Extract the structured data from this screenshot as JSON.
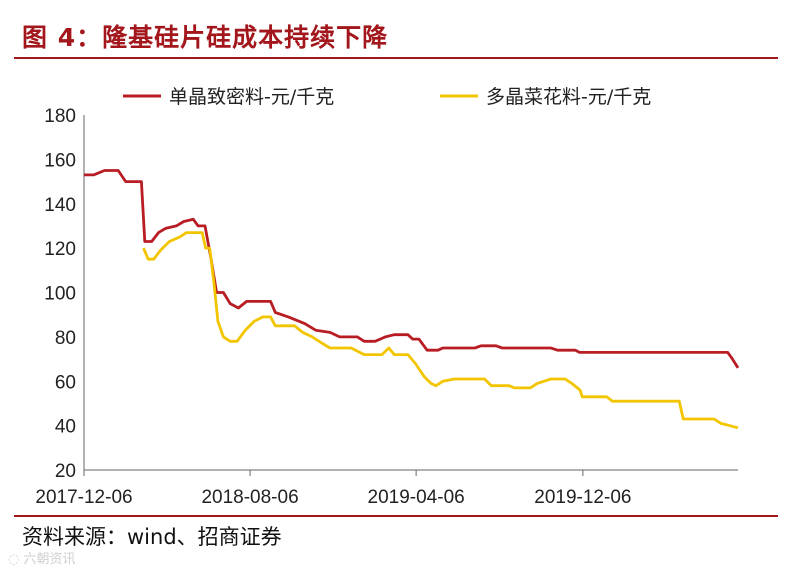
{
  "figure": {
    "title": "图 4：隆基硅片硅成本持续下降",
    "source": "资料来源：wind、招商证券",
    "watermark": "六朝资讯"
  },
  "chart_data": {
    "type": "line",
    "title": "图 4：隆基硅片硅成本持续下降",
    "xlabel": "",
    "ylabel": "",
    "ylim": [
      20,
      180
    ],
    "yticks": [
      20,
      40,
      60,
      80,
      100,
      120,
      140,
      160,
      180
    ],
    "x_tick_labels": [
      "2017-12-06",
      "2018-08-06",
      "2019-04-06",
      "2019-12-06"
    ],
    "x_range": [
      "2017-12-06",
      "2020-07-20"
    ],
    "grid": false,
    "legend_position": "top",
    "series": [
      {
        "name": "单晶致密料-元/千克",
        "color": "#b81d24",
        "points": [
          [
            "2017-12-06",
            153
          ],
          [
            "2017-12-20",
            153
          ],
          [
            "2018-01-05",
            155
          ],
          [
            "2018-01-25",
            155
          ],
          [
            "2018-02-05",
            150
          ],
          [
            "2018-02-28",
            150
          ],
          [
            "2018-03-05",
            123
          ],
          [
            "2018-03-15",
            123
          ],
          [
            "2018-03-25",
            127
          ],
          [
            "2018-04-05",
            129
          ],
          [
            "2018-04-20",
            130
          ],
          [
            "2018-05-01",
            132
          ],
          [
            "2018-05-15",
            133
          ],
          [
            "2018-05-22",
            130
          ],
          [
            "2018-06-01",
            130
          ],
          [
            "2018-06-10",
            115
          ],
          [
            "2018-06-18",
            100
          ],
          [
            "2018-06-28",
            100
          ],
          [
            "2018-07-08",
            95
          ],
          [
            "2018-07-20",
            93
          ],
          [
            "2018-08-01",
            96
          ],
          [
            "2018-09-05",
            96
          ],
          [
            "2018-09-12",
            91
          ],
          [
            "2018-10-01",
            89
          ],
          [
            "2018-10-25",
            86
          ],
          [
            "2018-11-10",
            83
          ],
          [
            "2018-12-01",
            82
          ],
          [
            "2018-12-15",
            80
          ],
          [
            "2019-01-10",
            80
          ],
          [
            "2019-01-20",
            78
          ],
          [
            "2019-02-05",
            78
          ],
          [
            "2019-02-20",
            80
          ],
          [
            "2019-03-05",
            81
          ],
          [
            "2019-03-25",
            81
          ],
          [
            "2019-04-01",
            79
          ],
          [
            "2019-04-10",
            79
          ],
          [
            "2019-04-22",
            74
          ],
          [
            "2019-05-08",
            74
          ],
          [
            "2019-05-15",
            75
          ],
          [
            "2019-07-01",
            75
          ],
          [
            "2019-07-10",
            76
          ],
          [
            "2019-08-01",
            76
          ],
          [
            "2019-08-10",
            75
          ],
          [
            "2019-10-20",
            75
          ],
          [
            "2019-10-30",
            74
          ],
          [
            "2019-11-25",
            74
          ],
          [
            "2019-12-01",
            73
          ],
          [
            "2020-07-05",
            73
          ],
          [
            "2020-07-12",
            70
          ],
          [
            "2020-07-20",
            66
          ]
        ]
      },
      {
        "name": "多晶菜花料-元/千克",
        "color": "#f2c500",
        "points": [
          [
            "2018-03-03",
            120
          ],
          [
            "2018-03-10",
            115
          ],
          [
            "2018-03-18",
            115
          ],
          [
            "2018-03-28",
            119
          ],
          [
            "2018-04-10",
            123
          ],
          [
            "2018-04-25",
            125
          ],
          [
            "2018-05-05",
            127
          ],
          [
            "2018-05-28",
            127
          ],
          [
            "2018-06-02",
            120
          ],
          [
            "2018-06-08",
            120
          ],
          [
            "2018-06-14",
            105
          ],
          [
            "2018-06-20",
            87
          ],
          [
            "2018-06-28",
            80
          ],
          [
            "2018-07-08",
            78
          ],
          [
            "2018-07-18",
            78
          ],
          [
            "2018-07-30",
            83
          ],
          [
            "2018-08-12",
            87
          ],
          [
            "2018-08-25",
            89
          ],
          [
            "2018-09-05",
            89
          ],
          [
            "2018-09-12",
            85
          ],
          [
            "2018-10-10",
            85
          ],
          [
            "2018-10-22",
            82
          ],
          [
            "2018-11-05",
            80
          ],
          [
            "2018-11-20",
            77
          ],
          [
            "2018-12-01",
            75
          ],
          [
            "2019-01-01",
            75
          ],
          [
            "2019-01-20",
            72
          ],
          [
            "2019-02-15",
            72
          ],
          [
            "2019-02-25",
            75
          ],
          [
            "2019-03-05",
            72
          ],
          [
            "2019-03-25",
            72
          ],
          [
            "2019-04-05",
            68
          ],
          [
            "2019-04-18",
            62
          ],
          [
            "2019-04-28",
            59
          ],
          [
            "2019-05-05",
            58
          ],
          [
            "2019-05-15",
            60
          ],
          [
            "2019-06-01",
            61
          ],
          [
            "2019-07-15",
            61
          ],
          [
            "2019-07-25",
            58
          ],
          [
            "2019-08-20",
            58
          ],
          [
            "2019-08-28",
            57
          ],
          [
            "2019-09-20",
            57
          ],
          [
            "2019-09-30",
            59
          ],
          [
            "2019-10-20",
            61
          ],
          [
            "2019-11-10",
            61
          ],
          [
            "2019-11-20",
            59
          ],
          [
            "2019-12-02",
            56
          ],
          [
            "2019-12-05",
            53
          ],
          [
            "2020-01-10",
            53
          ],
          [
            "2020-01-18",
            51
          ],
          [
            "2020-04-25",
            51
          ],
          [
            "2020-05-01",
            43
          ],
          [
            "2020-06-15",
            43
          ],
          [
            "2020-06-25",
            41
          ],
          [
            "2020-07-20",
            39
          ]
        ]
      }
    ]
  }
}
